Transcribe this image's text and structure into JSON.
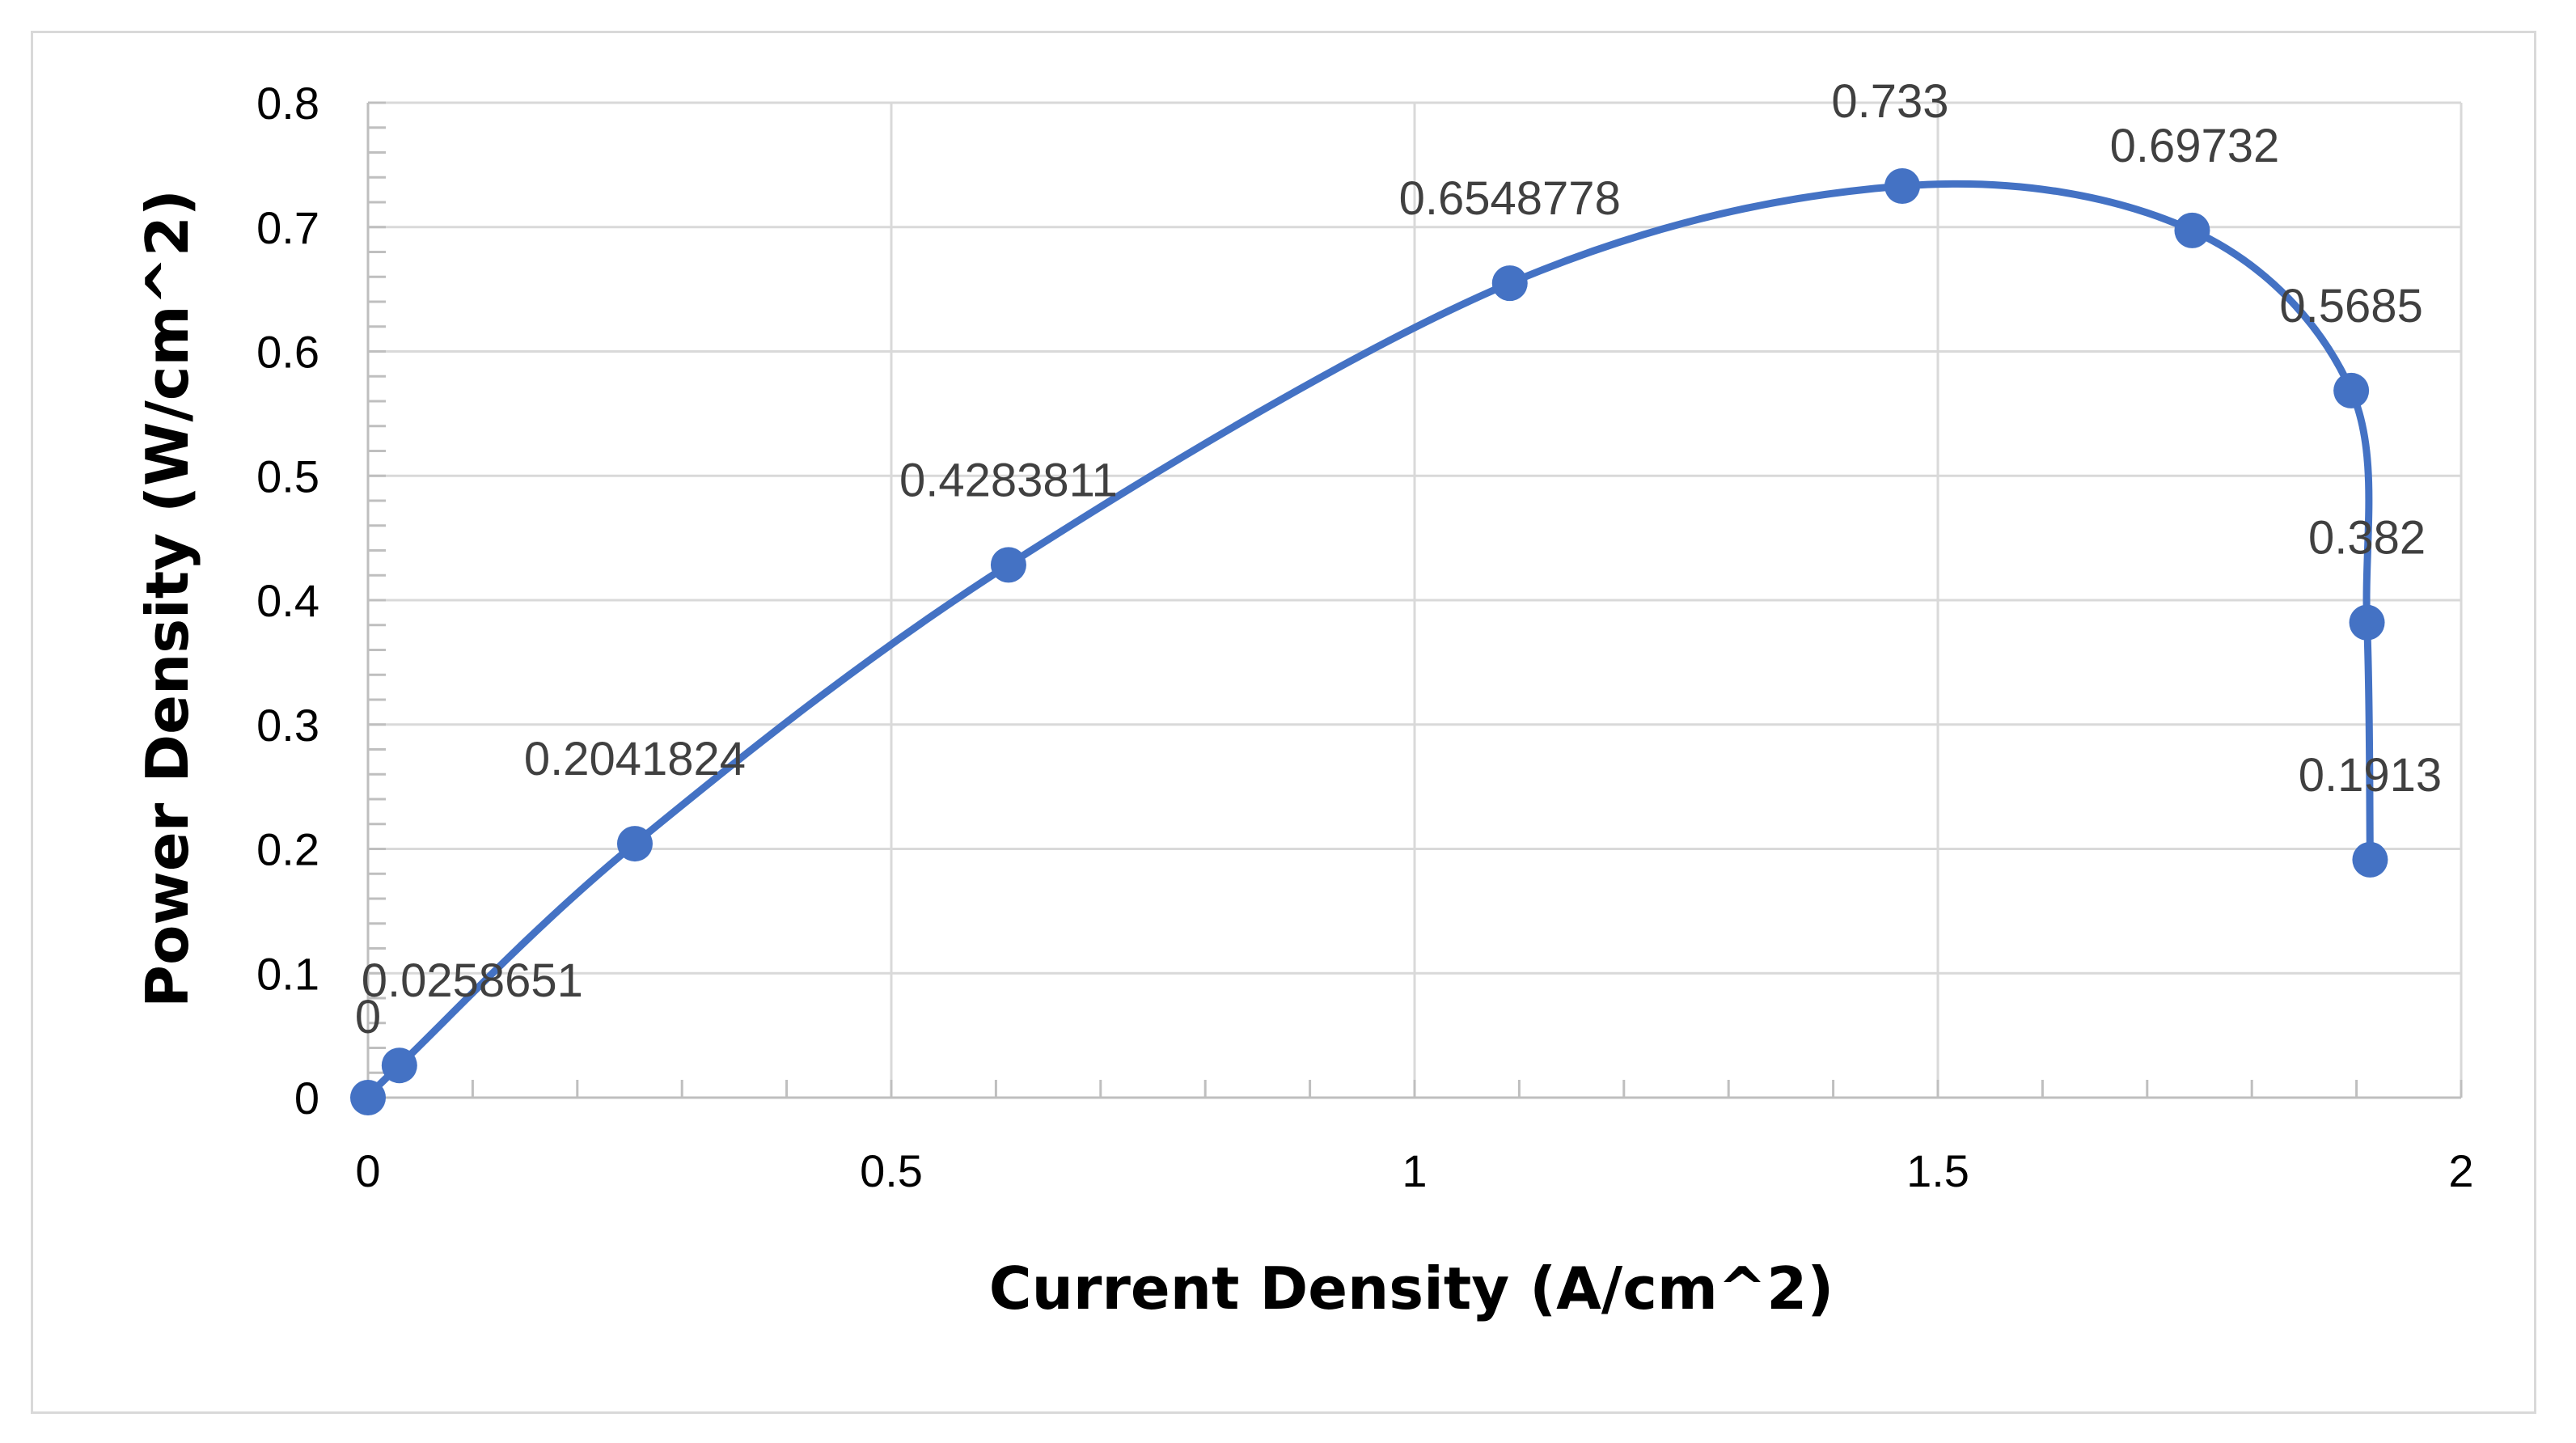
{
  "chart_data": {
    "type": "scatter",
    "title": "",
    "xlabel": "Current Density (A/cm^2)",
    "ylabel": "Power Density (W/cm^2)",
    "xlim": [
      0,
      2
    ],
    "ylim": [
      0,
      0.8
    ],
    "x_ticks": [
      "0",
      "0.5",
      "1",
      "1.5",
      "2"
    ],
    "y_ticks": [
      "0",
      "0.1",
      "0.2",
      "0.3",
      "0.4",
      "0.5",
      "0.6",
      "0.7",
      "0.8"
    ],
    "grid": true,
    "legend": "none",
    "smooth_line": true,
    "series": [
      {
        "color": "#4472c4",
        "points": [
          {
            "x": 0.0,
            "y": 0.0,
            "label": "0"
          },
          {
            "x": 0.03,
            "y": 0.0258651,
            "label": "0.0258651"
          },
          {
            "x": 0.255,
            "y": 0.2041824,
            "label": "0.2041824"
          },
          {
            "x": 0.612,
            "y": 0.4283811,
            "label": "0.4283811"
          },
          {
            "x": 1.091,
            "y": 0.6548778,
            "label": "0.6548778"
          },
          {
            "x": 1.466,
            "y": 0.733,
            "label": "0.733"
          },
          {
            "x": 1.743,
            "y": 0.69732,
            "label": "0.69732"
          },
          {
            "x": 1.895,
            "y": 0.5685,
            "label": "0.5685"
          },
          {
            "x": 1.91,
            "y": 0.382,
            "label": "0.382"
          },
          {
            "x": 1.913,
            "y": 0.1913,
            "label": "0.1913"
          }
        ]
      }
    ]
  }
}
